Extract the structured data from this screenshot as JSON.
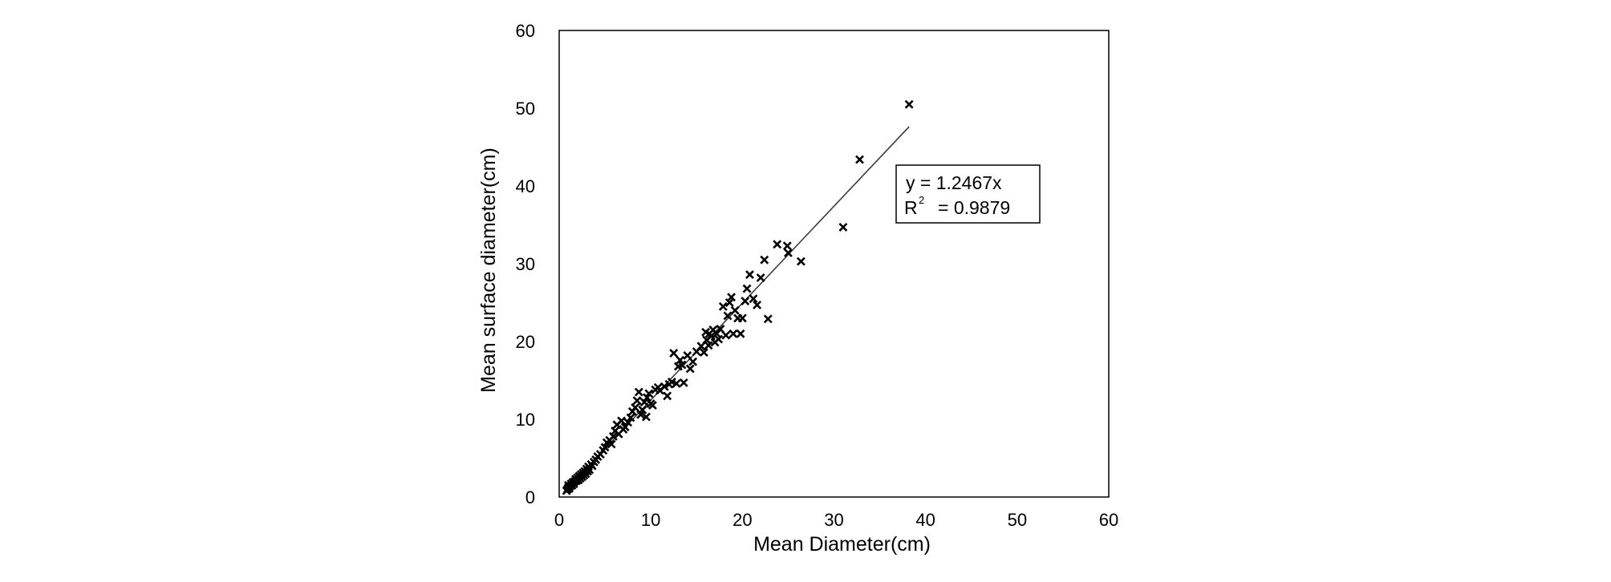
{
  "chart_data": {
    "type": "scatter",
    "xlabel": "Mean Diameter(cm)",
    "ylabel": "Mean surface diameter(cm)",
    "xlim": [
      0,
      60
    ],
    "ylim": [
      0,
      60
    ],
    "xticks": [
      "0",
      "10",
      "20",
      "30",
      "40",
      "50",
      "60"
    ],
    "yticks": [
      "0",
      "10",
      "20",
      "30",
      "40",
      "50",
      "60"
    ],
    "grid": false,
    "marker": "x",
    "marker_color": "#000000",
    "trendline": {
      "type": "linear-through-origin",
      "slope": 1.2467,
      "x_range": [
        0.8,
        38.2
      ],
      "color": "#333333"
    },
    "annotation": {
      "equation": "y = 1.2467x",
      "r2_label": "R",
      "r2_sup": "2",
      "r2_value": "= 0.9879"
    },
    "points": [
      [
        0.8,
        0.8
      ],
      [
        0.9,
        1.0
      ],
      [
        1.0,
        1.2
      ],
      [
        1.1,
        1.1
      ],
      [
        1.0,
        1.5
      ],
      [
        1.2,
        1.4
      ],
      [
        1.3,
        1.7
      ],
      [
        1.4,
        1.5
      ],
      [
        1.5,
        1.9
      ],
      [
        1.6,
        1.7
      ],
      [
        1.7,
        2.0
      ],
      [
        1.8,
        2.3
      ],
      [
        1.9,
        2.1
      ],
      [
        2.0,
        2.5
      ],
      [
        2.1,
        2.2
      ],
      [
        2.2,
        2.7
      ],
      [
        2.3,
        2.4
      ],
      [
        2.4,
        2.9
      ],
      [
        2.5,
        2.6
      ],
      [
        2.6,
        3.1
      ],
      [
        2.7,
        2.8
      ],
      [
        2.8,
        3.3
      ],
      [
        2.9,
        3.0
      ],
      [
        3.0,
        3.6
      ],
      [
        3.1,
        3.3
      ],
      [
        3.2,
        3.9
      ],
      [
        3.3,
        3.5
      ],
      [
        3.5,
        4.2
      ],
      [
        3.6,
        4.0
      ],
      [
        3.8,
        4.5
      ],
      [
        4.0,
        4.8
      ],
      [
        4.2,
        5.2
      ],
      [
        4.5,
        5.5
      ],
      [
        4.8,
        6.0
      ],
      [
        5.0,
        6.4
      ],
      [
        5.2,
        7.0
      ],
      [
        5.5,
        7.3
      ],
      [
        5.7,
        6.8
      ],
      [
        5.9,
        7.8
      ],
      [
        6.1,
        8.5
      ],
      [
        6.3,
        9.3
      ],
      [
        6.5,
        8.1
      ],
      [
        6.8,
        9.8
      ],
      [
        7.0,
        8.7
      ],
      [
        7.2,
        9.0
      ],
      [
        7.5,
        9.6
      ],
      [
        7.8,
        10.2
      ],
      [
        8.0,
        11.0
      ],
      [
        8.3,
        11.5
      ],
      [
        8.5,
        12.4
      ],
      [
        8.7,
        13.5
      ],
      [
        8.9,
        10.6
      ],
      [
        9.1,
        11.2
      ],
      [
        9.3,
        12.2
      ],
      [
        9.5,
        10.3
      ],
      [
        9.6,
        12.8
      ],
      [
        9.8,
        13.3
      ],
      [
        10.0,
        12.0
      ],
      [
        10.2,
        11.8
      ],
      [
        10.5,
        13.8
      ],
      [
        10.8,
        14.1
      ],
      [
        11.0,
        13.7
      ],
      [
        11.5,
        14.2
      ],
      [
        11.8,
        13.0
      ],
      [
        12.0,
        14.5
      ],
      [
        12.3,
        14.8
      ],
      [
        12.5,
        18.5
      ],
      [
        12.8,
        14.6
      ],
      [
        13.0,
        16.8
      ],
      [
        13.2,
        17.6
      ],
      [
        13.4,
        17.0
      ],
      [
        13.6,
        14.7
      ],
      [
        14.0,
        18.2
      ],
      [
        14.3,
        16.5
      ],
      [
        14.6,
        17.4
      ],
      [
        15.0,
        18.7
      ],
      [
        15.5,
        19.4
      ],
      [
        15.8,
        18.6
      ],
      [
        16.0,
        21.2
      ],
      [
        16.1,
        20.2
      ],
      [
        16.3,
        19.5
      ],
      [
        16.4,
        21.0
      ],
      [
        16.6,
        20.7
      ],
      [
        16.8,
        21.5
      ],
      [
        17.0,
        19.9
      ],
      [
        17.2,
        21.0
      ],
      [
        17.4,
        20.3
      ],
      [
        17.6,
        21.6
      ],
      [
        17.9,
        24.5
      ],
      [
        18.2,
        20.8
      ],
      [
        18.4,
        23.3
      ],
      [
        18.6,
        25.0
      ],
      [
        18.8,
        25.7
      ],
      [
        19.0,
        21.0
      ],
      [
        19.2,
        24.0
      ],
      [
        19.5,
        23.0
      ],
      [
        19.8,
        21.0
      ],
      [
        20.0,
        23.0
      ],
      [
        20.3,
        25.2
      ],
      [
        20.5,
        26.8
      ],
      [
        20.8,
        28.6
      ],
      [
        21.2,
        25.5
      ],
      [
        21.6,
        24.7
      ],
      [
        22.0,
        28.2
      ],
      [
        22.4,
        30.5
      ],
      [
        22.8,
        22.9
      ],
      [
        23.8,
        32.5
      ],
      [
        24.9,
        32.3
      ],
      [
        25.0,
        31.4
      ],
      [
        26.4,
        30.3
      ],
      [
        31.0,
        34.7
      ],
      [
        32.8,
        43.4
      ],
      [
        38.2,
        50.5
      ]
    ]
  }
}
